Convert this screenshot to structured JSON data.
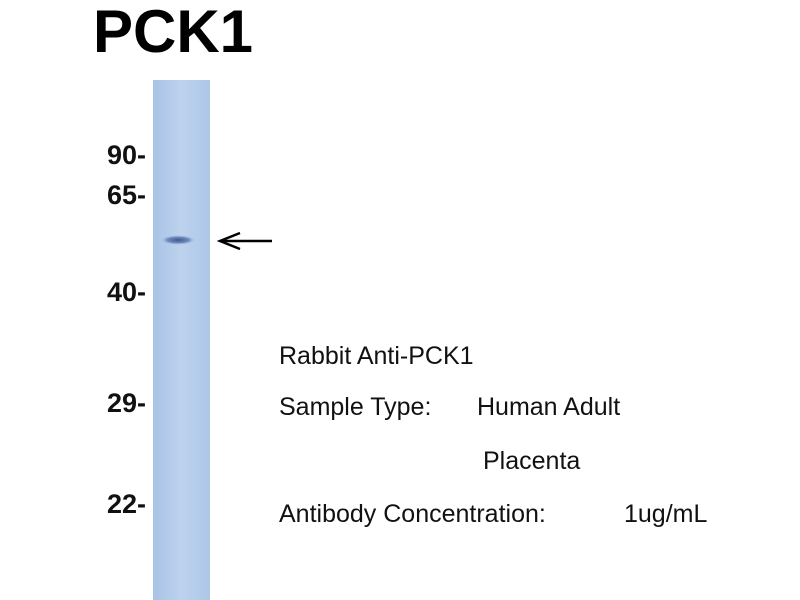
{
  "title": "PCK1",
  "markers": [
    "90-",
    "65-",
    "40-",
    "29-",
    "22-"
  ],
  "annotations": {
    "antibody": "Rabbit Anti-PCK1",
    "sample_label": "Sample Type:",
    "sample_value_1": "Human Adult",
    "sample_value_2": "Placenta",
    "concentration_label": "Antibody Concentration:",
    "concentration_value": "1ug/mL"
  }
}
